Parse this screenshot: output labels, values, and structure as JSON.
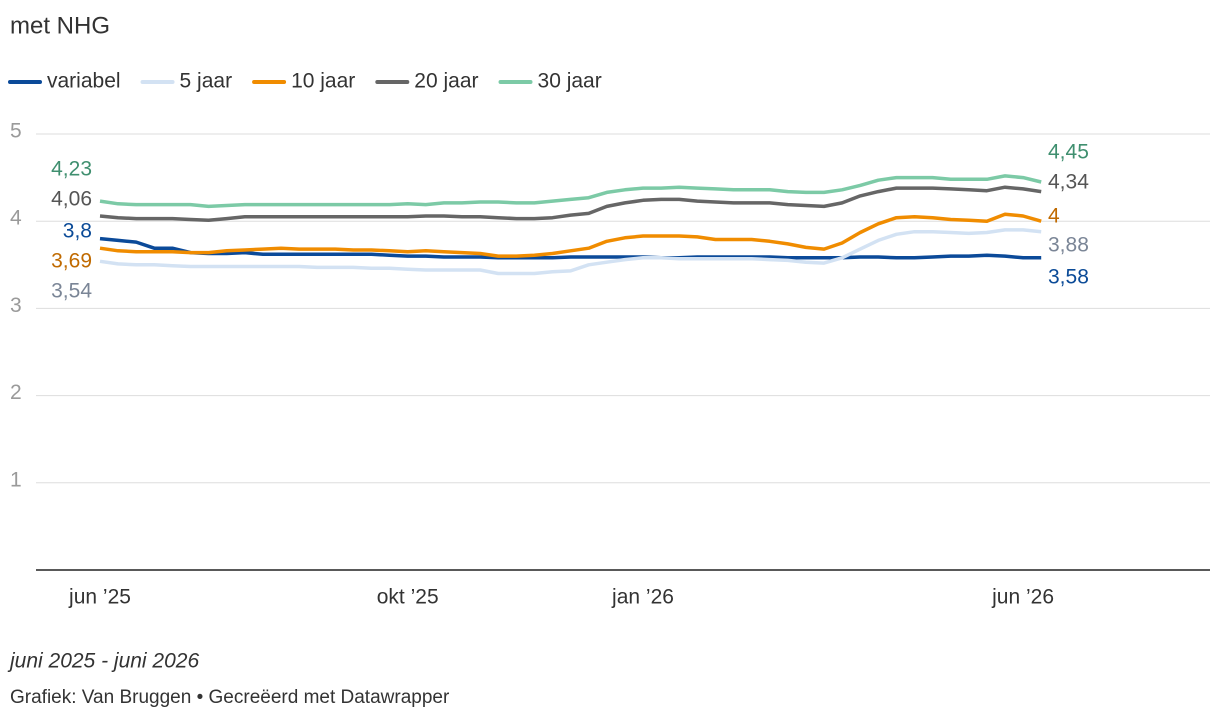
{
  "chart_data": {
    "type": "line",
    "title": "met NHG",
    "subtitle": "juni 2025 - juni 2026",
    "source": "Grafiek: Van Bruggen • Gecreëerd met Datawrapper",
    "categories": [
      "jun ’25",
      null,
      null,
      null,
      null,
      null,
      null,
      null,
      null,
      null,
      null,
      null,
      null,
      null,
      null,
      null,
      null,
      "okt ’25",
      null,
      null,
      null,
      null,
      null,
      null,
      null,
      null,
      null,
      null,
      null,
      null,
      "jan ’26",
      null,
      null,
      null,
      null,
      null,
      null,
      null,
      null,
      null,
      null,
      null,
      null,
      null,
      null,
      null,
      null,
      null,
      null,
      null,
      null,
      "jun ’26",
      null
    ],
    "ylim": [
      0,
      5
    ],
    "yticks": [
      1,
      2,
      3,
      4,
      5
    ],
    "grid": true,
    "legend": "top",
    "series": [
      {
        "name": "variabel",
        "color": "#0b4a99",
        "label_color": "#0a4a97",
        "values": [
          3.8,
          3.78,
          3.76,
          3.69,
          3.69,
          3.64,
          3.63,
          3.63,
          3.64,
          3.62,
          3.62,
          3.62,
          3.62,
          3.62,
          3.62,
          3.62,
          3.61,
          3.6,
          3.6,
          3.59,
          3.59,
          3.59,
          3.58,
          3.58,
          3.58,
          3.58,
          3.59,
          3.59,
          3.59,
          3.59,
          3.59,
          3.58,
          3.58,
          3.59,
          3.59,
          3.59,
          3.59,
          3.59,
          3.58,
          3.58,
          3.58,
          3.58,
          3.59,
          3.59,
          3.58,
          3.58,
          3.59,
          3.6,
          3.6,
          3.61,
          3.6,
          3.58,
          3.58
        ],
        "value_labels": [
          "3,8",
          null,
          null,
          null,
          null,
          null,
          null,
          null,
          null,
          null,
          null,
          null,
          null,
          null,
          null,
          null,
          null,
          null,
          null,
          null,
          null,
          null,
          null,
          null,
          null,
          null,
          null,
          null,
          null,
          null,
          null,
          null,
          null,
          null,
          null,
          null,
          null,
          null,
          null,
          null,
          null,
          null,
          null,
          null,
          null,
          null,
          null,
          null,
          null,
          null,
          null,
          null,
          "3,58"
        ]
      },
      {
        "name": "5 jaar",
        "color": "#d3e2f3",
        "label_color": "#7a8596",
        "values": [
          3.54,
          3.51,
          3.5,
          3.5,
          3.49,
          3.48,
          3.48,
          3.48,
          3.48,
          3.48,
          3.48,
          3.48,
          3.47,
          3.47,
          3.47,
          3.46,
          3.46,
          3.45,
          3.44,
          3.44,
          3.44,
          3.44,
          3.4,
          3.4,
          3.4,
          3.42,
          3.43,
          3.5,
          3.53,
          3.56,
          3.58,
          3.58,
          3.57,
          3.57,
          3.57,
          3.57,
          3.57,
          3.56,
          3.55,
          3.53,
          3.52,
          3.58,
          3.68,
          3.78,
          3.85,
          3.88,
          3.88,
          3.87,
          3.86,
          3.87,
          3.9,
          3.9,
          3.88
        ],
        "value_labels": [
          "3,54",
          null,
          null,
          null,
          null,
          null,
          null,
          null,
          null,
          null,
          null,
          null,
          null,
          null,
          null,
          null,
          null,
          null,
          null,
          null,
          null,
          null,
          null,
          null,
          null,
          null,
          null,
          null,
          null,
          null,
          null,
          null,
          null,
          null,
          null,
          null,
          null,
          null,
          null,
          null,
          null,
          null,
          null,
          null,
          null,
          null,
          null,
          null,
          null,
          null,
          null,
          null,
          "3,88"
        ]
      },
      {
        "name": "10 jaar",
        "color": "#f08c00",
        "label_color": "#c06a00",
        "values": [
          3.69,
          3.66,
          3.65,
          3.65,
          3.65,
          3.64,
          3.64,
          3.66,
          3.67,
          3.68,
          3.69,
          3.68,
          3.68,
          3.68,
          3.67,
          3.67,
          3.66,
          3.65,
          3.66,
          3.65,
          3.64,
          3.63,
          3.6,
          3.6,
          3.61,
          3.63,
          3.66,
          3.69,
          3.77,
          3.81,
          3.83,
          3.83,
          3.83,
          3.82,
          3.79,
          3.79,
          3.79,
          3.77,
          3.74,
          3.7,
          3.68,
          3.75,
          3.87,
          3.97,
          4.04,
          4.05,
          4.04,
          4.02,
          4.01,
          4.0,
          4.08,
          4.06,
          4
        ],
        "value_labels": [
          "3,69",
          null,
          null,
          null,
          null,
          null,
          null,
          null,
          null,
          null,
          null,
          null,
          null,
          null,
          null,
          null,
          null,
          null,
          null,
          null,
          null,
          null,
          null,
          null,
          null,
          null,
          null,
          null,
          null,
          null,
          null,
          null,
          null,
          null,
          null,
          null,
          null,
          null,
          null,
          null,
          null,
          null,
          null,
          null,
          null,
          null,
          null,
          null,
          null,
          null,
          null,
          null,
          "4"
        ]
      },
      {
        "name": "20 jaar",
        "color": "#666666",
        "label_color": "#555555",
        "values": [
          4.06,
          4.04,
          4.03,
          4.03,
          4.03,
          4.02,
          4.01,
          4.03,
          4.05,
          4.05,
          4.05,
          4.05,
          4.05,
          4.05,
          4.05,
          4.05,
          4.05,
          4.05,
          4.06,
          4.06,
          4.05,
          4.05,
          4.04,
          4.03,
          4.03,
          4.04,
          4.07,
          4.09,
          4.17,
          4.21,
          4.24,
          4.25,
          4.25,
          4.23,
          4.22,
          4.21,
          4.21,
          4.21,
          4.19,
          4.18,
          4.17,
          4.21,
          4.29,
          4.34,
          4.38,
          4.38,
          4.38,
          4.37,
          4.36,
          4.35,
          4.39,
          4.37,
          4.34
        ],
        "value_labels": [
          "4,06",
          null,
          null,
          null,
          null,
          null,
          null,
          null,
          null,
          null,
          null,
          null,
          null,
          null,
          null,
          null,
          null,
          null,
          null,
          null,
          null,
          null,
          null,
          null,
          null,
          null,
          null,
          null,
          null,
          null,
          null,
          null,
          null,
          null,
          null,
          null,
          null,
          null,
          null,
          null,
          null,
          null,
          null,
          null,
          null,
          null,
          null,
          null,
          null,
          null,
          null,
          null,
          "4,34"
        ]
      },
      {
        "name": "30 jaar",
        "color": "#7ccaa6",
        "label_color": "#3f8f6f",
        "values": [
          4.23,
          4.2,
          4.19,
          4.19,
          4.19,
          4.19,
          4.17,
          4.18,
          4.19,
          4.19,
          4.19,
          4.19,
          4.19,
          4.19,
          4.19,
          4.19,
          4.19,
          4.2,
          4.19,
          4.21,
          4.21,
          4.22,
          4.22,
          4.21,
          4.21,
          4.23,
          4.25,
          4.27,
          4.33,
          4.36,
          4.38,
          4.38,
          4.39,
          4.38,
          4.37,
          4.36,
          4.36,
          4.36,
          4.34,
          4.33,
          4.33,
          4.36,
          4.41,
          4.47,
          4.5,
          4.5,
          4.5,
          4.48,
          4.48,
          4.48,
          4.52,
          4.5,
          4.45
        ],
        "value_labels": [
          "4,23",
          null,
          null,
          null,
          null,
          null,
          null,
          null,
          null,
          null,
          null,
          null,
          null,
          null,
          null,
          null,
          null,
          null,
          null,
          null,
          null,
          null,
          null,
          null,
          null,
          null,
          null,
          null,
          null,
          null,
          null,
          null,
          null,
          null,
          null,
          null,
          null,
          null,
          null,
          null,
          null,
          null,
          null,
          null,
          null,
          null,
          null,
          null,
          null,
          null,
          null,
          null,
          "4,45"
        ]
      }
    ]
  }
}
